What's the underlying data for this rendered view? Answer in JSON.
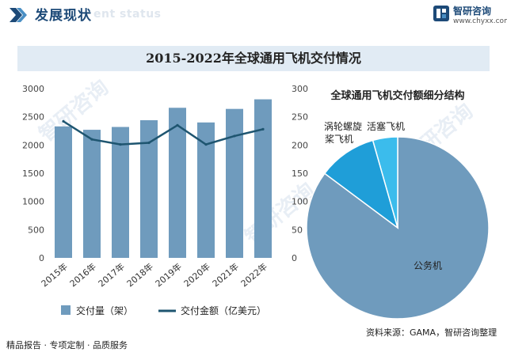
{
  "header": {
    "title": "发展现状",
    "subtitle_en": "ent status"
  },
  "brand": {
    "name": "智研咨询",
    "url": "www.chyxx.com"
  },
  "chart_title": "2015-2022年全球通用飞机交付情况",
  "footer": {
    "left_text": "精品报告 · 专项定制 · 品质服务",
    "source_text": "资料来源：GAMA，智研咨询整理"
  },
  "colors": {
    "bar": "#6f9bbd",
    "line": "#1e5570",
    "pie_main": "#6f9bbd",
    "pie_turboprop": "#1f9ed8",
    "pie_piston": "#3bbcec",
    "title_bar_bg": "#e1ebf4",
    "header_text": "#1d4a78"
  },
  "chart_data": [
    {
      "type": "bar",
      "categories": [
        "2015年",
        "2016年",
        "2017年",
        "2018年",
        "2019年",
        "2020年",
        "2021年",
        "2022年"
      ],
      "series": [
        {
          "name": "交付量（架）",
          "type": "bar",
          "axis": "left",
          "values": [
            2330,
            2270,
            2320,
            2440,
            2660,
            2400,
            2640,
            2810
          ]
        },
        {
          "name": "交付金额（亿美元）",
          "type": "line",
          "axis": "right",
          "values": [
            242,
            210,
            201,
            204,
            235,
            201,
            216,
            228
          ]
        }
      ],
      "yleft": {
        "min": 0,
        "max": 3000,
        "ticks": [
          0,
          500,
          1000,
          1500,
          2000,
          2500,
          3000
        ]
      },
      "yright": {
        "min": 0,
        "max": 300,
        "ticks": [
          0,
          50,
          100,
          150,
          200,
          250,
          300
        ]
      },
      "legend_position": "bottom"
    },
    {
      "type": "pie",
      "title": "全球通用飞机交付额细分结构",
      "slices": [
        {
          "label": "公务机",
          "value": 85.2
        },
        {
          "label": "涡轮螺旋桨飞机",
          "display_label": [
            "涡轮螺旋",
            "桨飞机"
          ],
          "value": 10.4
        },
        {
          "label": "活塞飞机",
          "value": 4.4
        }
      ]
    }
  ]
}
